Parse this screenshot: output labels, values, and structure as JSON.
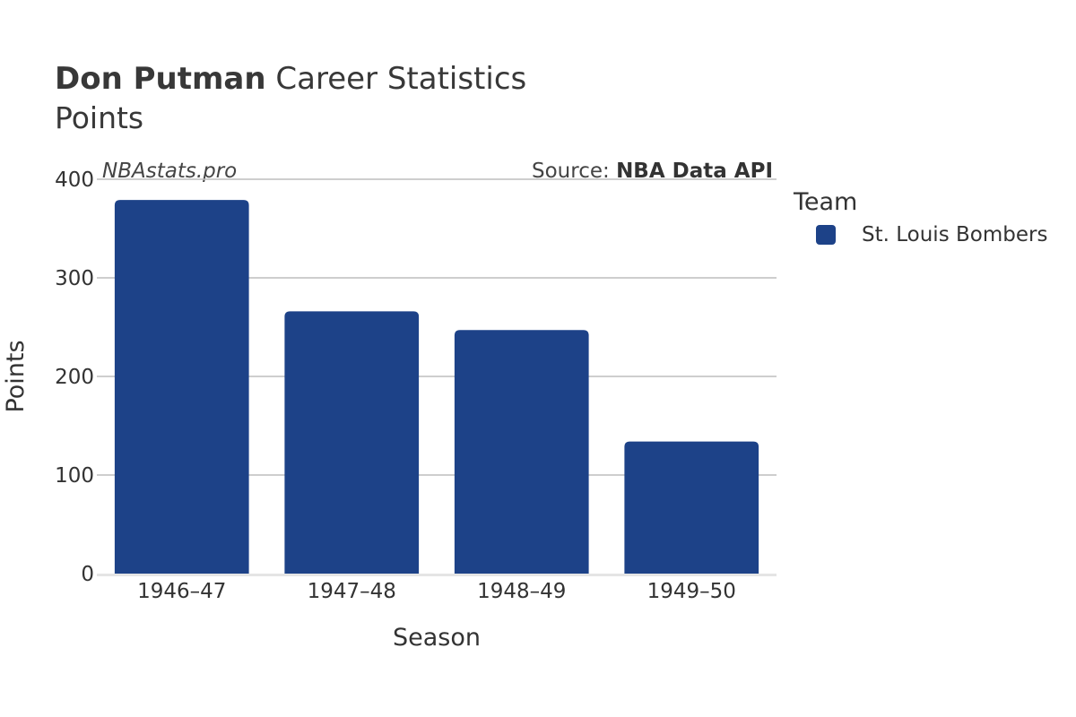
{
  "header": {
    "player_name": "Don Putman",
    "title_rest": " Career Statistics",
    "subtitle": "Points"
  },
  "watermark": "NBAstats.pro",
  "source": {
    "prefix": "Source: ",
    "name": "NBA Data API"
  },
  "legend": {
    "title": "Team",
    "items": [
      {
        "label": "St. Louis Bombers",
        "color": "#1d4288"
      }
    ]
  },
  "chart_data": {
    "type": "bar",
    "xlabel": "Season",
    "ylabel": "Points",
    "categories": [
      "1946–47",
      "1947–48",
      "1948–49",
      "1949–50"
    ],
    "series": [
      {
        "name": "St. Louis Bombers",
        "color": "#1d4288",
        "values": [
          379,
          266,
          247,
          134
        ]
      }
    ],
    "ylim": [
      0,
      400
    ],
    "yticks": [
      0,
      100,
      200,
      300,
      400
    ],
    "grid": true,
    "legend_position": "right"
  }
}
